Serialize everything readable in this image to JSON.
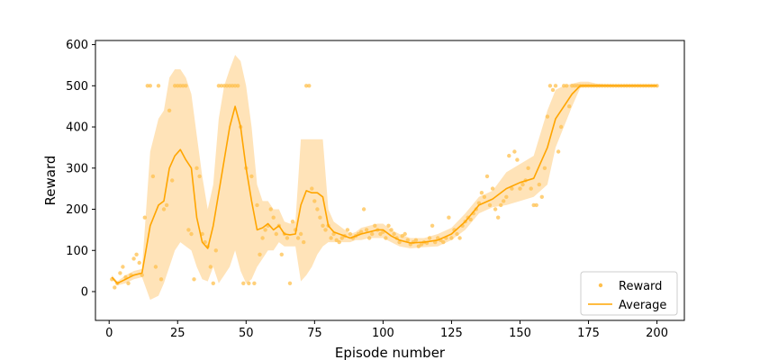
{
  "chart_data": {
    "type": "line",
    "xlabel": "Episode number",
    "ylabel": "Reward",
    "xlim": [
      -5,
      210
    ],
    "ylim": [
      -70,
      610
    ],
    "xticks": [
      0,
      25,
      50,
      75,
      100,
      125,
      150,
      175,
      200
    ],
    "yticks": [
      0,
      100,
      200,
      300,
      400,
      500,
      600
    ],
    "legend_position": "bottom-right",
    "colors": {
      "line": "#FFA500",
      "points": "#FFC04D",
      "band": "#FFE0B0"
    },
    "series": [
      {
        "name": "Reward",
        "style": "points",
        "points": [
          [
            1,
            30
          ],
          [
            2,
            10
          ],
          [
            3,
            20
          ],
          [
            4,
            45
          ],
          [
            5,
            60
          ],
          [
            6,
            35
          ],
          [
            7,
            20
          ],
          [
            8,
            40
          ],
          [
            9,
            80
          ],
          [
            10,
            90
          ],
          [
            11,
            70
          ],
          [
            12,
            40
          ],
          [
            13,
            180
          ],
          [
            14,
            500
          ],
          [
            15,
            500
          ],
          [
            16,
            280
          ],
          [
            17,
            60
          ],
          [
            18,
            500
          ],
          [
            19,
            30
          ],
          [
            20,
            200
          ],
          [
            21,
            210
          ],
          [
            22,
            440
          ],
          [
            23,
            270
          ],
          [
            24,
            500
          ],
          [
            25,
            500
          ],
          [
            26,
            500
          ],
          [
            27,
            500
          ],
          [
            28,
            500
          ],
          [
            29,
            150
          ],
          [
            30,
            140
          ],
          [
            31,
            30
          ],
          [
            32,
            300
          ],
          [
            33,
            280
          ],
          [
            34,
            140
          ],
          [
            35,
            120
          ],
          [
            36,
            110
          ],
          [
            37,
            60
          ],
          [
            38,
            20
          ],
          [
            39,
            100
          ],
          [
            40,
            500
          ],
          [
            41,
            500
          ],
          [
            42,
            500
          ],
          [
            43,
            500
          ],
          [
            44,
            500
          ],
          [
            45,
            500
          ],
          [
            46,
            500
          ],
          [
            47,
            500
          ],
          [
            48,
            400
          ],
          [
            49,
            20
          ],
          [
            50,
            300
          ],
          [
            51,
            20
          ],
          [
            52,
            280
          ],
          [
            53,
            20
          ],
          [
            54,
            210
          ],
          [
            55,
            90
          ],
          [
            56,
            130
          ],
          [
            57,
            150
          ],
          [
            58,
            160
          ],
          [
            59,
            200
          ],
          [
            60,
            180
          ],
          [
            61,
            140
          ],
          [
            62,
            160
          ],
          [
            63,
            90
          ],
          [
            64,
            140
          ],
          [
            65,
            130
          ],
          [
            66,
            20
          ],
          [
            67,
            170
          ],
          [
            68,
            150
          ],
          [
            69,
            130
          ],
          [
            70,
            140
          ],
          [
            71,
            120
          ],
          [
            72,
            500
          ],
          [
            73,
            500
          ],
          [
            74,
            250
          ],
          [
            75,
            220
          ],
          [
            76,
            200
          ],
          [
            77,
            180
          ],
          [
            78,
            160
          ],
          [
            79,
            150
          ],
          [
            80,
            160
          ],
          [
            81,
            130
          ],
          [
            82,
            140
          ],
          [
            83,
            125
          ],
          [
            84,
            120
          ],
          [
            85,
            130
          ],
          [
            86,
            135
          ],
          [
            87,
            150
          ],
          [
            88,
            140
          ],
          [
            89,
            130
          ],
          [
            90,
            135
          ],
          [
            91,
            140
          ],
          [
            92,
            145
          ],
          [
            93,
            200
          ],
          [
            94,
            150
          ],
          [
            95,
            130
          ],
          [
            96,
            140
          ],
          [
            97,
            160
          ],
          [
            98,
            150
          ],
          [
            99,
            140
          ],
          [
            100,
            145
          ],
          [
            101,
            130
          ],
          [
            102,
            160
          ],
          [
            103,
            150
          ],
          [
            104,
            140
          ],
          [
            105,
            130
          ],
          [
            106,
            120
          ],
          [
            107,
            135
          ],
          [
            108,
            140
          ],
          [
            109,
            125
          ],
          [
            110,
            115
          ],
          [
            111,
            120
          ],
          [
            112,
            125
          ],
          [
            113,
            110
          ],
          [
            114,
            115
          ],
          [
            115,
            120
          ],
          [
            116,
            118
          ],
          [
            117,
            130
          ],
          [
            118,
            160
          ],
          [
            119,
            120
          ],
          [
            120,
            130
          ],
          [
            121,
            125
          ],
          [
            122,
            120
          ],
          [
            123,
            130
          ],
          [
            124,
            180
          ],
          [
            125,
            130
          ],
          [
            126,
            150
          ],
          [
            127,
            140
          ],
          [
            128,
            130
          ],
          [
            129,
            160
          ],
          [
            130,
            170
          ],
          [
            131,
            180
          ],
          [
            132,
            175
          ],
          [
            133,
            190
          ],
          [
            134,
            200
          ],
          [
            135,
            215
          ],
          [
            136,
            240
          ],
          [
            137,
            230
          ],
          [
            138,
            280
          ],
          [
            139,
            210
          ],
          [
            140,
            250
          ],
          [
            141,
            200
          ],
          [
            142,
            180
          ],
          [
            143,
            210
          ],
          [
            144,
            220
          ],
          [
            145,
            230
          ],
          [
            146,
            330
          ],
          [
            147,
            250
          ],
          [
            148,
            340
          ],
          [
            149,
            320
          ],
          [
            150,
            250
          ],
          [
            151,
            260
          ],
          [
            152,
            270
          ],
          [
            153,
            300
          ],
          [
            154,
            250
          ],
          [
            155,
            210
          ],
          [
            156,
            210
          ],
          [
            157,
            260
          ],
          [
            158,
            230
          ],
          [
            159,
            300
          ],
          [
            160,
            425
          ],
          [
            161,
            500
          ],
          [
            162,
            490
          ],
          [
            163,
            500
          ],
          [
            164,
            340
          ],
          [
            165,
            400
          ],
          [
            166,
            500
          ],
          [
            167,
            500
          ],
          [
            168,
            450
          ],
          [
            169,
            500
          ],
          [
            170,
            500
          ],
          [
            171,
            500
          ],
          [
            172,
            500
          ],
          [
            173,
            500
          ],
          [
            174,
            500
          ],
          [
            175,
            500
          ],
          [
            176,
            500
          ],
          [
            177,
            500
          ],
          [
            178,
            500
          ],
          [
            179,
            500
          ],
          [
            180,
            500
          ],
          [
            181,
            500
          ],
          [
            182,
            500
          ],
          [
            183,
            500
          ],
          [
            184,
            500
          ],
          [
            185,
            500
          ],
          [
            186,
            500
          ],
          [
            187,
            500
          ],
          [
            188,
            500
          ],
          [
            189,
            500
          ],
          [
            190,
            500
          ],
          [
            191,
            500
          ],
          [
            192,
            500
          ],
          [
            193,
            500
          ],
          [
            194,
            500
          ],
          [
            195,
            500
          ],
          [
            196,
            500
          ],
          [
            197,
            500
          ],
          [
            198,
            500
          ],
          [
            199,
            500
          ],
          [
            200,
            500
          ]
        ]
      },
      {
        "name": "Average",
        "style": "line",
        "x": [
          1,
          3,
          6,
          9,
          12,
          15,
          18,
          20,
          22,
          24,
          26,
          28,
          30,
          32,
          34,
          36,
          38,
          40,
          42,
          44,
          46,
          48,
          50,
          52,
          54,
          56,
          58,
          60,
          62,
          64,
          66,
          68,
          70,
          72,
          74,
          76,
          78,
          80,
          82,
          84,
          86,
          88,
          90,
          92,
          95,
          98,
          100,
          103,
          106,
          110,
          115,
          120,
          125,
          130,
          135,
          140,
          145,
          150,
          155,
          160,
          163,
          166,
          169,
          172,
          175,
          178,
          185,
          200
        ],
        "y": [
          35,
          20,
          30,
          40,
          45,
          160,
          210,
          220,
          300,
          330,
          345,
          320,
          300,
          180,
          120,
          105,
          160,
          240,
          320,
          400,
          450,
          400,
          300,
          220,
          150,
          155,
          165,
          150,
          160,
          140,
          138,
          140,
          210,
          245,
          240,
          240,
          230,
          160,
          145,
          140,
          135,
          130,
          135,
          140,
          145,
          150,
          150,
          135,
          125,
          118,
          120,
          125,
          140,
          170,
          210,
          225,
          250,
          265,
          275,
          350,
          420,
          450,
          480,
          500,
          500,
          500,
          500,
          500
        ],
        "band_lower": [
          30,
          15,
          20,
          30,
          35,
          -20,
          -10,
          20,
          60,
          100,
          120,
          110,
          100,
          60,
          30,
          25,
          60,
          20,
          40,
          60,
          100,
          50,
          20,
          30,
          60,
          80,
          100,
          100,
          120,
          110,
          110,
          110,
          25,
          40,
          60,
          90,
          110,
          120,
          120,
          120,
          120,
          120,
          125,
          125,
          130,
          130,
          130,
          120,
          110,
          105,
          108,
          110,
          125,
          150,
          190,
          205,
          210,
          220,
          230,
          260,
          350,
          400,
          450,
          495,
          500,
          500,
          500,
          500
        ],
        "band_upper": [
          40,
          25,
          40,
          50,
          55,
          340,
          420,
          440,
          520,
          540,
          540,
          520,
          480,
          380,
          280,
          200,
          260,
          420,
          500,
          540,
          575,
          560,
          500,
          400,
          260,
          220,
          220,
          200,
          200,
          170,
          165,
          170,
          370,
          370,
          370,
          370,
          370,
          200,
          170,
          160,
          150,
          140,
          145,
          155,
          160,
          165,
          165,
          150,
          140,
          130,
          130,
          140,
          155,
          190,
          230,
          245,
          290,
          310,
          330,
          440,
          490,
          500,
          505,
          510,
          510,
          505,
          502,
          502
        ]
      }
    ]
  }
}
